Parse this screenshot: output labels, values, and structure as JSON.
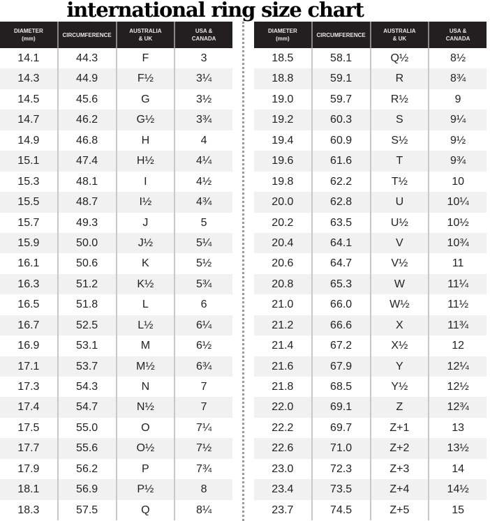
{
  "title": "international ring size chart",
  "headers": [
    "DIAMETER\n(mm)",
    "CIRCUMFERENCE",
    "AUSTRALIA\n& UK",
    "USA &\nCANADA"
  ],
  "left_rows": [
    [
      "14.1",
      "44.3",
      "F",
      "3"
    ],
    [
      "14.3",
      "44.9",
      "F½",
      "3¼"
    ],
    [
      "14.5",
      "45.6",
      "G",
      "3½"
    ],
    [
      "14.7",
      "46.2",
      "G½",
      "3¾"
    ],
    [
      "14.9",
      "46.8",
      "H",
      "4"
    ],
    [
      "15.1",
      "47.4",
      "H½",
      "4¼"
    ],
    [
      "15.3",
      "48.1",
      "I",
      "4½"
    ],
    [
      "15.5",
      "48.7",
      "I½",
      "4¾"
    ],
    [
      "15.7",
      "49.3",
      "J",
      "5"
    ],
    [
      "15.9",
      "50.0",
      "J½",
      "5¼"
    ],
    [
      "16.1",
      "50.6",
      "K",
      "5½"
    ],
    [
      "16.3",
      "51.2",
      "K½",
      "5¾"
    ],
    [
      "16.5",
      "51.8",
      "L",
      "6"
    ],
    [
      "16.7",
      "52.5",
      "L½",
      "6¼"
    ],
    [
      "16.9",
      "53.1",
      "M",
      "6½"
    ],
    [
      "17.1",
      "53.7",
      "M½",
      "6¾"
    ],
    [
      "17.3",
      "54.3",
      "N",
      "7"
    ],
    [
      "17.4",
      "54.7",
      "N½",
      "7"
    ],
    [
      "17.5",
      "55.0",
      "O",
      "7¼"
    ],
    [
      "17.7",
      "55.6",
      "O½",
      "7½"
    ],
    [
      "17.9",
      "56.2",
      "P",
      "7¾"
    ],
    [
      "18.1",
      "56.9",
      "P½",
      "8"
    ],
    [
      "18.3",
      "57.5",
      "Q",
      "8¼"
    ]
  ],
  "right_rows": [
    [
      "18.5",
      "58.1",
      "Q½",
      "8½"
    ],
    [
      "18.8",
      "59.1",
      "R",
      "8¾"
    ],
    [
      "19.0",
      "59.7",
      "R½",
      "9"
    ],
    [
      "19.2",
      "60.3",
      "S",
      "9¼"
    ],
    [
      "19.4",
      "60.9",
      "S½",
      "9½"
    ],
    [
      "19.6",
      "61.6",
      "T",
      "9¾"
    ],
    [
      "19.8",
      "62.2",
      "T½",
      "10"
    ],
    [
      "20.0",
      "62.8",
      "U",
      "10¼"
    ],
    [
      "20.2",
      "63.5",
      "U½",
      "10½"
    ],
    [
      "20.4",
      "64.1",
      "V",
      "10¾"
    ],
    [
      "20.6",
      "64.7",
      "V½",
      "11"
    ],
    [
      "20.8",
      "65.3",
      "W",
      "11¼"
    ],
    [
      "21.0",
      "66.0",
      "W½",
      "11½"
    ],
    [
      "21.2",
      "66.6",
      "X",
      "11¾"
    ],
    [
      "21.4",
      "67.2",
      "X½",
      "12"
    ],
    [
      "21.6",
      "67.9",
      "Y",
      "12¼"
    ],
    [
      "21.8",
      "68.5",
      "Y½",
      "12½"
    ],
    [
      "22.0",
      "69.1",
      "Z",
      "12¾"
    ],
    [
      "22.2",
      "69.7",
      "Z+1",
      "13"
    ],
    [
      "22.6",
      "71.0",
      "Z+2",
      "13½"
    ],
    [
      "23.0",
      "72.3",
      "Z+3",
      "14"
    ],
    [
      "23.4",
      "73.5",
      "Z+4",
      "14½"
    ],
    [
      "23.7",
      "74.5",
      "Z+5",
      "15"
    ]
  ]
}
